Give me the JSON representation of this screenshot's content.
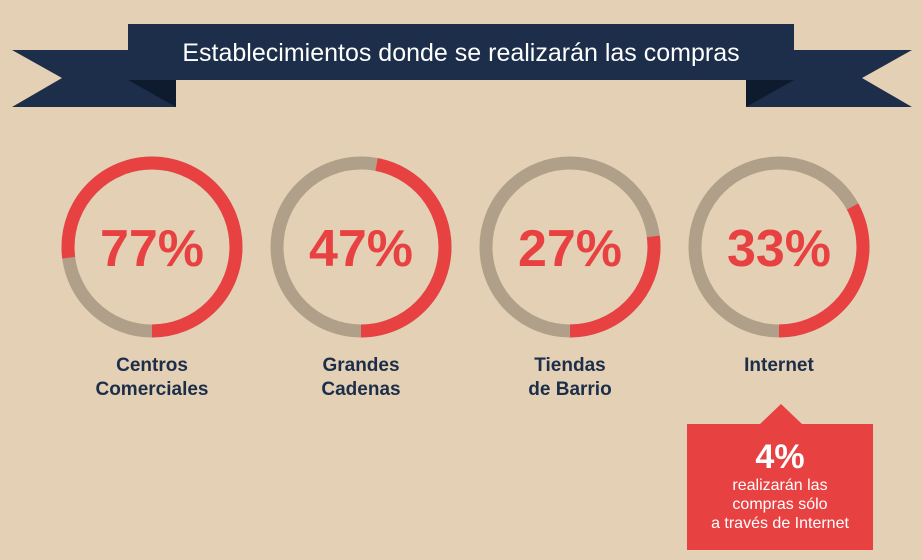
{
  "title": "Establecimientos donde se realizarán las compras",
  "colors": {
    "background": "#e4d0b4",
    "banner": "#1c2e4a",
    "banner_dark": "#0e1b2e",
    "accent": "#e84142",
    "track": "#b0a089",
    "label": "#1c2e4a"
  },
  "chart_data": {
    "type": "donut",
    "title": "Establecimientos donde se realizarán las compras",
    "unit": "%",
    "items": [
      {
        "value": 77,
        "display": "77%",
        "label_lines": [
          "Centros",
          "Comerciales"
        ]
      },
      {
        "value": 47,
        "display": "47%",
        "label_lines": [
          "Grandes",
          "Cadenas"
        ]
      },
      {
        "value": 27,
        "display": "27%",
        "label_lines": [
          "Tiendas",
          "de Barrio"
        ]
      },
      {
        "value": 33,
        "display": "33%",
        "label_lines": [
          "Internet"
        ]
      }
    ]
  },
  "callout": {
    "value": "4%",
    "lines": [
      "realizarán las",
      "compras sólo",
      "a través de Internet"
    ]
  }
}
